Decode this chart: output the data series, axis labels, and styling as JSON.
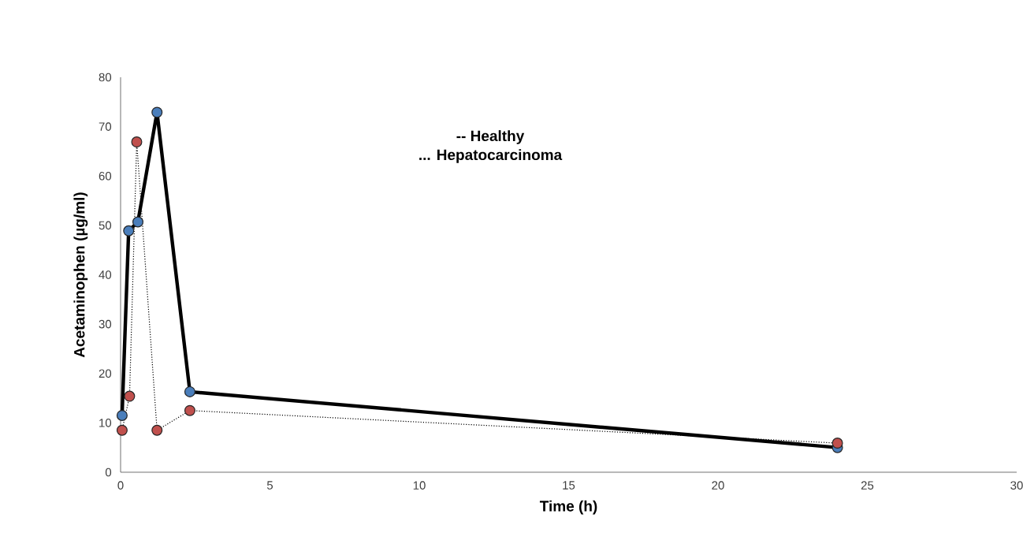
{
  "chart_data": {
    "type": "line",
    "xlabel": "Time (h)",
    "ylabel": "Acetaminophen (µg/ml)",
    "annotations": [
      "-- Healthy",
      "... Hepatocarcinoma"
    ],
    "xlim": [
      0,
      30
    ],
    "xticks": [
      0,
      5,
      10,
      15,
      20,
      25,
      30
    ],
    "ylim": [
      0,
      80
    ],
    "yticks": [
      0,
      10,
      20,
      30,
      40,
      50,
      60,
      70,
      80
    ],
    "marker": "circle",
    "grid": false,
    "series": [
      {
        "color": "#4a7ebb",
        "line_style": "solid",
        "x": [
          0.05,
          0.27,
          0.58,
          1.22,
          2.32,
          24
        ],
        "values": [
          11.5,
          48.9,
          50.7,
          72.9,
          16.3,
          5
        ]
      },
      {
        "color": "#c0504d",
        "line_style": "dotted",
        "x": [
          0.05,
          0.3,
          0.54,
          1.22,
          2.32,
          24
        ],
        "values": [
          8.5,
          15.4,
          66.9,
          8.5,
          12.5,
          5.9
        ]
      }
    ]
  }
}
